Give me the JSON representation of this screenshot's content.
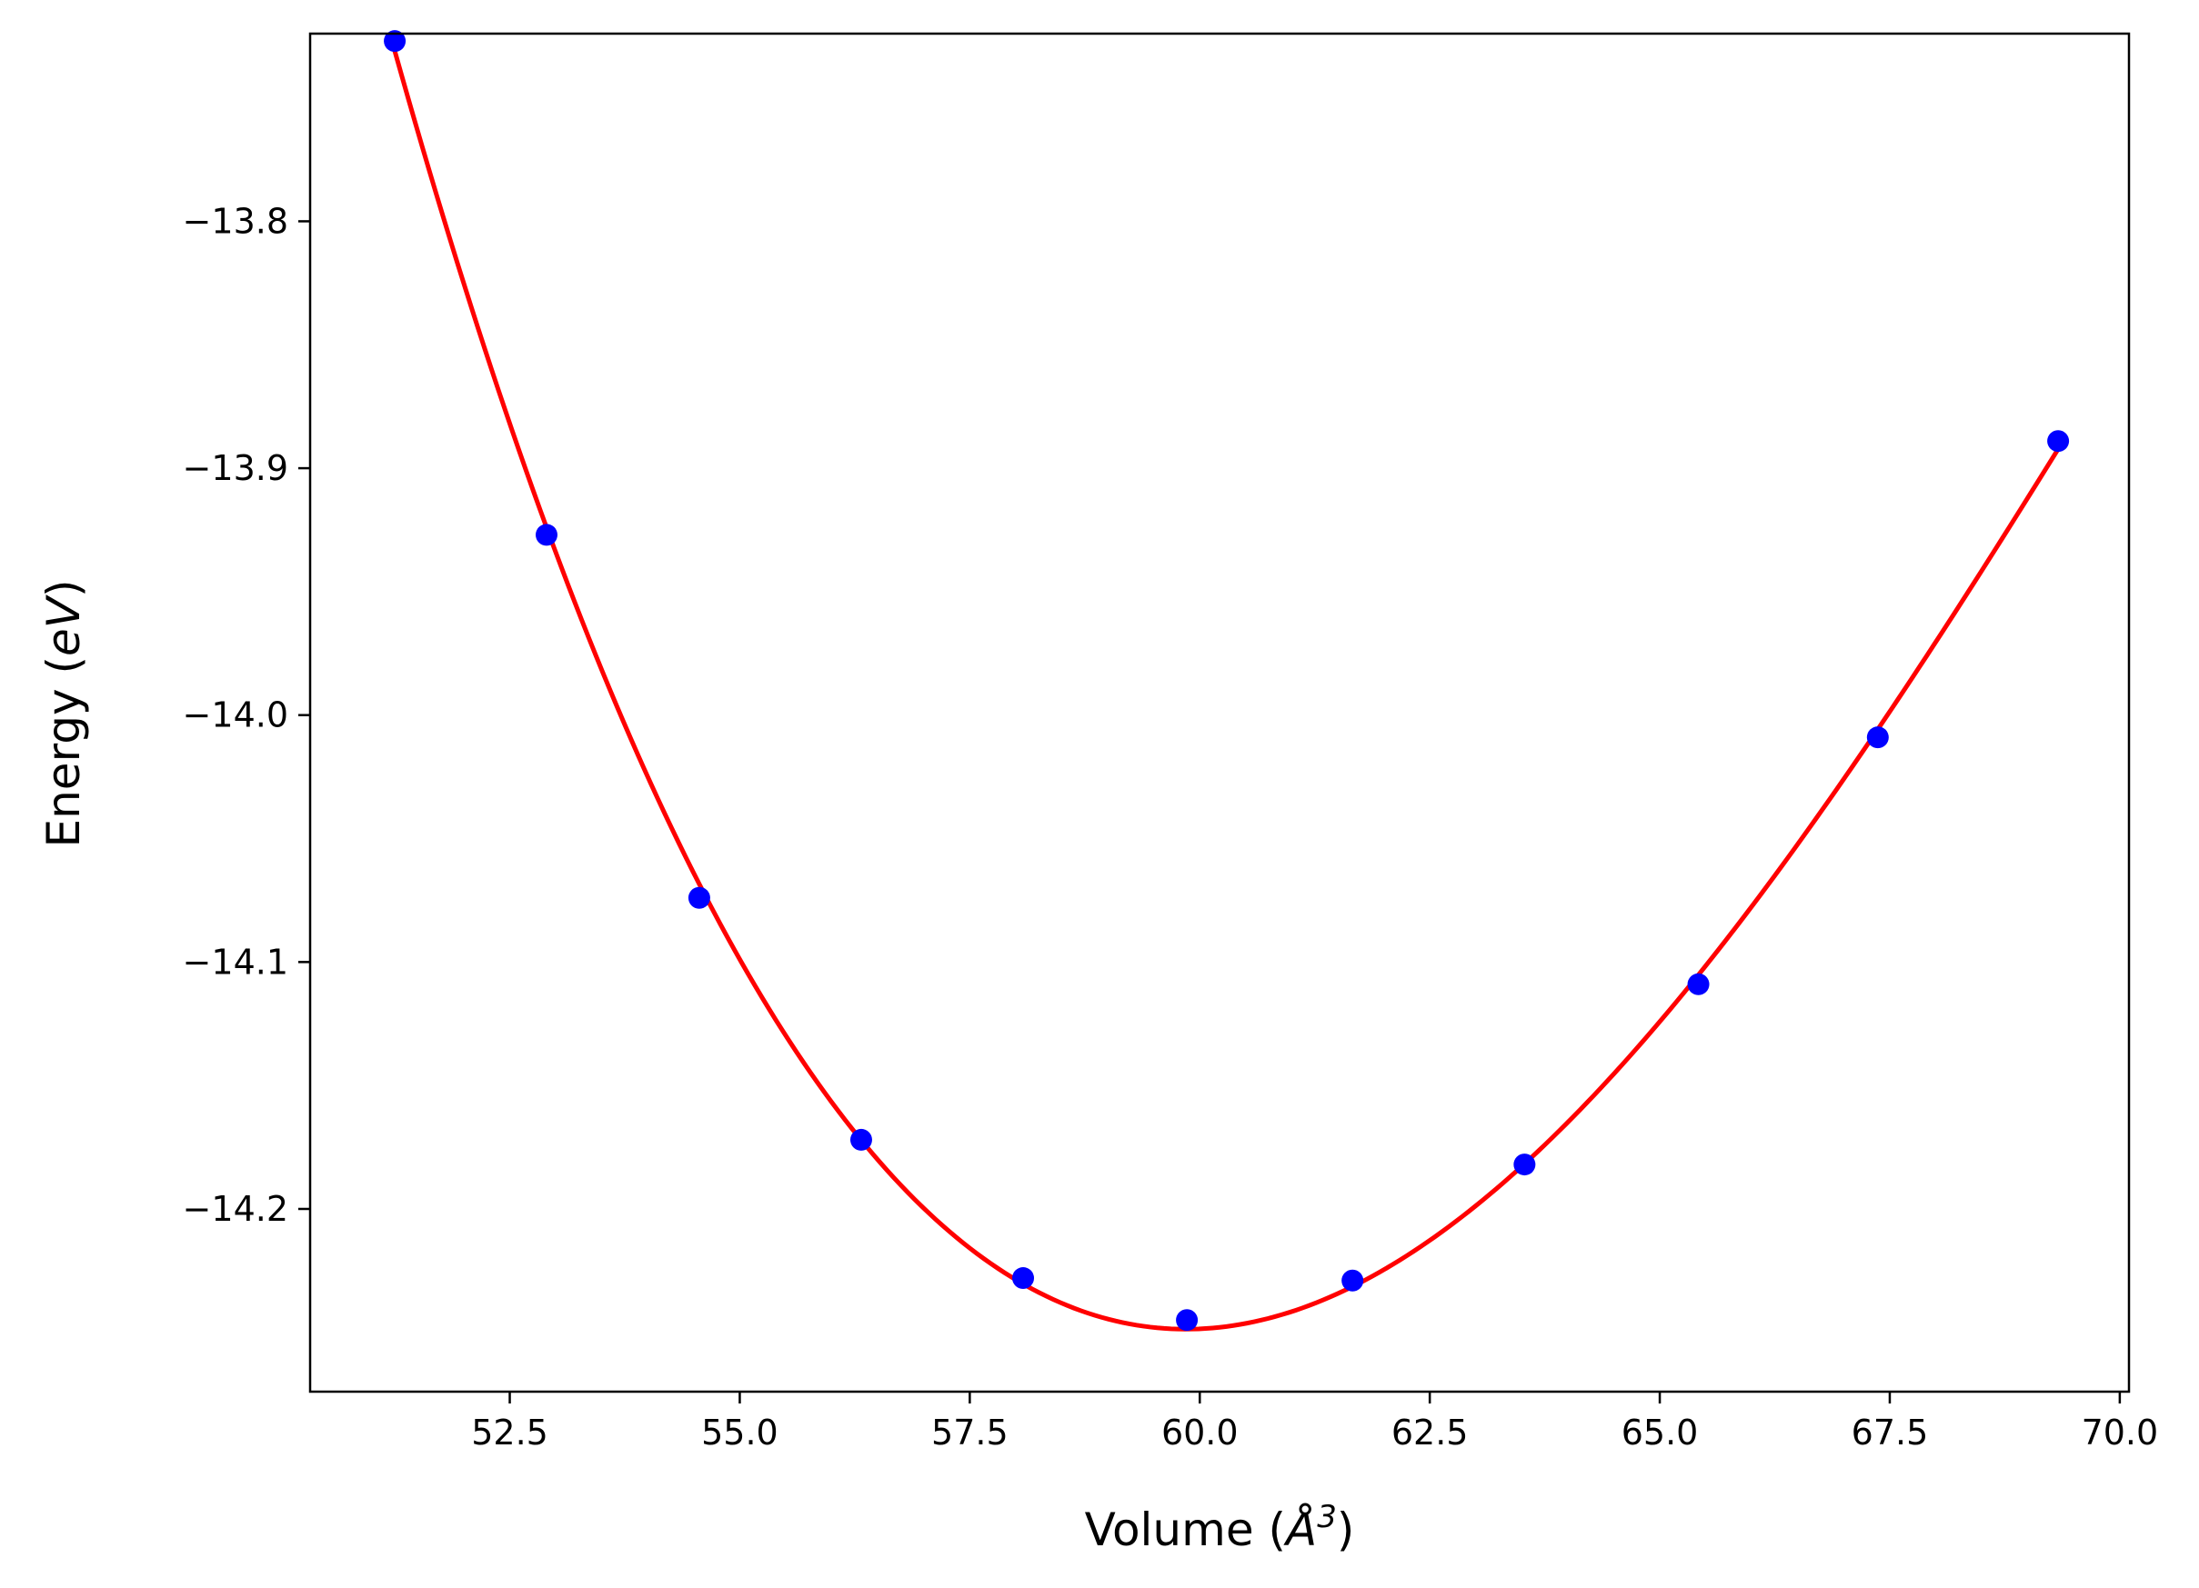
{
  "chart_data": {
    "type": "scatter",
    "xlabel": "Volume",
    "xlabel_unit": "Å",
    "xlabel_unit_exp": "3",
    "ylabel": "Energy",
    "ylabel_unit": "eV",
    "xlim": [
      50.33,
      70.1
    ],
    "ylim": [
      -14.274,
      -13.724
    ],
    "xticks": [
      52.5,
      55.0,
      57.5,
      60.0,
      62.5,
      65.0,
      67.5,
      70.0
    ],
    "xtick_labels": [
      "52.5",
      "55.0",
      "57.5",
      "60.0",
      "62.5",
      "65.0",
      "67.5",
      "70.0"
    ],
    "yticks": [
      -14.2,
      -14.1,
      -14.0,
      -13.9,
      -13.8
    ],
    "ytick_labels": [
      "−14.2",
      "−14.1",
      "−14.0",
      "−13.9",
      "−13.8"
    ],
    "grid": false,
    "legend": "none",
    "series": [
      {
        "kind": "points",
        "color": "#0000ff",
        "x": [
          51.25,
          52.9,
          54.56,
          56.32,
          58.08,
          59.86,
          61.66,
          63.53,
          65.42,
          67.37,
          69.33
        ],
        "y": [
          -13.727,
          -13.927,
          -14.074,
          -14.172,
          -14.228,
          -14.245,
          -14.229,
          -14.182,
          -14.109,
          -14.009,
          -13.889
        ]
      },
      {
        "kind": "fit-curve",
        "color": "#ff0000",
        "x_range": [
          51.25,
          69.33
        ]
      }
    ]
  }
}
